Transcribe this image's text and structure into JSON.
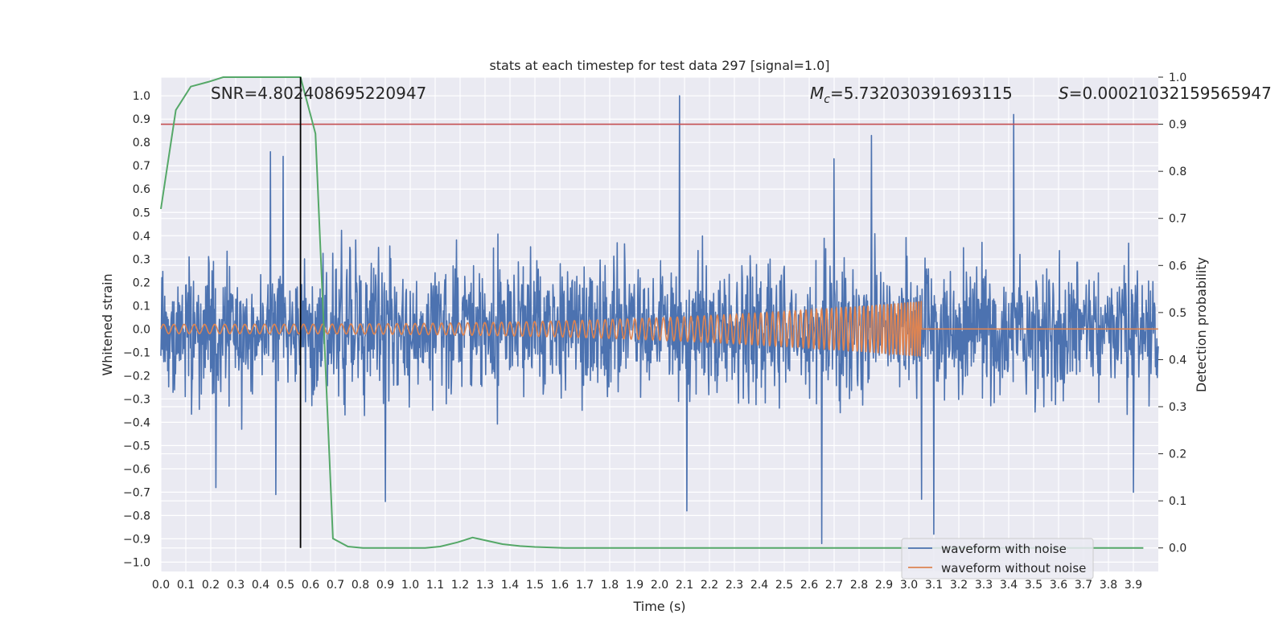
{
  "chart_data": {
    "type": "line",
    "title": "stats at each timestep for test data 297 [signal=1.0]",
    "xlabel": "Time (s)",
    "ylabel": "Whitened strain",
    "y2label": "Detection probability",
    "xlim": [
      0.0,
      4.0
    ],
    "ylim": [
      -1.04,
      1.08
    ],
    "y2lim": [
      -0.05,
      1.0
    ],
    "x_ticks": [
      "0.0",
      "0.1",
      "0.2",
      "0.3",
      "0.4",
      "0.5",
      "0.6",
      "0.7",
      "0.8",
      "0.9",
      "1.0",
      "1.1",
      "1.2",
      "1.3",
      "1.4",
      "1.5",
      "1.6",
      "1.7",
      "1.8",
      "1.9",
      "2.0",
      "2.1",
      "2.2",
      "2.3",
      "2.4",
      "2.5",
      "2.6",
      "2.7",
      "2.8",
      "2.9",
      "3.0",
      "3.1",
      "3.2",
      "3.3",
      "3.4",
      "3.5",
      "3.6",
      "3.7",
      "3.8",
      "3.9"
    ],
    "y_ticks": [
      "1.0",
      "0.9",
      "0.8",
      "0.7",
      "0.6",
      "0.5",
      "0.4",
      "0.3",
      "0.2",
      "0.1",
      "0.0",
      "−0.1",
      "−0.2",
      "−0.3",
      "−0.4",
      "−0.5",
      "−0.6",
      "−0.7",
      "−0.8",
      "−0.9",
      "−1.0"
    ],
    "y2_ticks": [
      "1.0",
      "0.9",
      "0.8",
      "0.7",
      "0.6",
      "0.5",
      "0.4",
      "0.3",
      "0.2",
      "0.1",
      "0.0"
    ],
    "grid": true,
    "legend_placement": "lower-right",
    "annotations": {
      "snr": "SNR=4.802408695220947",
      "mc_symbol": "M",
      "mc_sub": "c",
      "mc_value": "=5.732030391693115",
      "s_symbol": "S",
      "s_value": "=0.00021032159565947"
    },
    "threshold": {
      "value": 0.9,
      "axis": "right",
      "color": "#c44e52"
    },
    "detection_time": 0.56,
    "series": [
      {
        "name": "waveform with noise",
        "color": "#4c72b0",
        "kind": "noise",
        "x_range": [
          0.0,
          4.0
        ],
        "amplitude_range": [
          -0.95,
          1.0
        ],
        "peaks": [
          {
            "x": 2.08,
            "y": 1.0
          },
          {
            "x": 3.42,
            "y": 0.92
          },
          {
            "x": 2.85,
            "y": 0.83
          },
          {
            "x": 0.44,
            "y": 0.76
          },
          {
            "x": 0.49,
            "y": 0.74
          },
          {
            "x": 2.7,
            "y": 0.73
          },
          {
            "x": 2.65,
            "y": -0.92
          },
          {
            "x": 3.1,
            "y": -0.88
          },
          {
            "x": 0.46,
            "y": -0.71
          },
          {
            "x": 2.11,
            "y": -0.78
          },
          {
            "x": 3.05,
            "y": -0.73
          },
          {
            "x": 0.22,
            "y": -0.68
          },
          {
            "x": 0.9,
            "y": -0.74
          },
          {
            "x": 3.9,
            "y": -0.7
          }
        ]
      },
      {
        "name": "waveform without noise",
        "color": "#dd8452",
        "kind": "chirp",
        "x_range": [
          0.0,
          3.05
        ],
        "amplitude_start": 0.02,
        "amplitude_end": 0.12,
        "flat_after": 3.05
      },
      {
        "name": "detection probability",
        "color": "#55a868",
        "axis": "right",
        "x": [
          0.0,
          0.06,
          0.12,
          0.19,
          0.25,
          0.31,
          0.37,
          0.44,
          0.5,
          0.56,
          0.62,
          0.69,
          0.75,
          0.81,
          0.88,
          0.94,
          1.0,
          1.06,
          1.12,
          1.19,
          1.25,
          1.31,
          1.37,
          1.44,
          1.5,
          1.56,
          1.62,
          2.0,
          2.5,
          3.0,
          3.5,
          3.94
        ],
        "values": [
          0.72,
          0.93,
          0.98,
          0.99,
          1.0,
          1.0,
          1.0,
          1.0,
          1.0,
          1.0,
          0.88,
          0.02,
          0.003,
          0.0,
          0.0,
          0.0,
          0.0,
          0.0,
          0.003,
          0.012,
          0.022,
          0.015,
          0.008,
          0.004,
          0.002,
          0.001,
          0.0,
          0.0,
          0.0,
          0.0,
          0.0,
          0.0
        ]
      }
    ]
  }
}
